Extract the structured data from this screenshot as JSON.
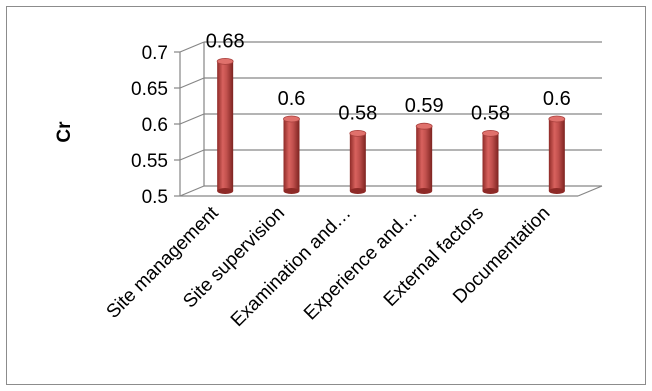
{
  "chart_data": {
    "type": "bar",
    "style": "3d-cylinder",
    "ylabel": "Cr",
    "xlabel": "",
    "title": "",
    "ylim": [
      0.5,
      0.7
    ],
    "yticks": [
      "0.5",
      "0.55",
      "0.6",
      "0.65",
      "0.7"
    ],
    "categories": [
      "Site management",
      "Site supervision",
      "Examination and…",
      "Experience and…",
      "External factors",
      "Documentation"
    ],
    "values": [
      0.68,
      0.6,
      0.58,
      0.59,
      0.58,
      0.6
    ],
    "data_labels": [
      "0.68",
      "0.6",
      "0.58",
      "0.59",
      "0.58",
      "0.6"
    ],
    "grid": true,
    "legend": "none",
    "bar_color": "#c0504d"
  }
}
